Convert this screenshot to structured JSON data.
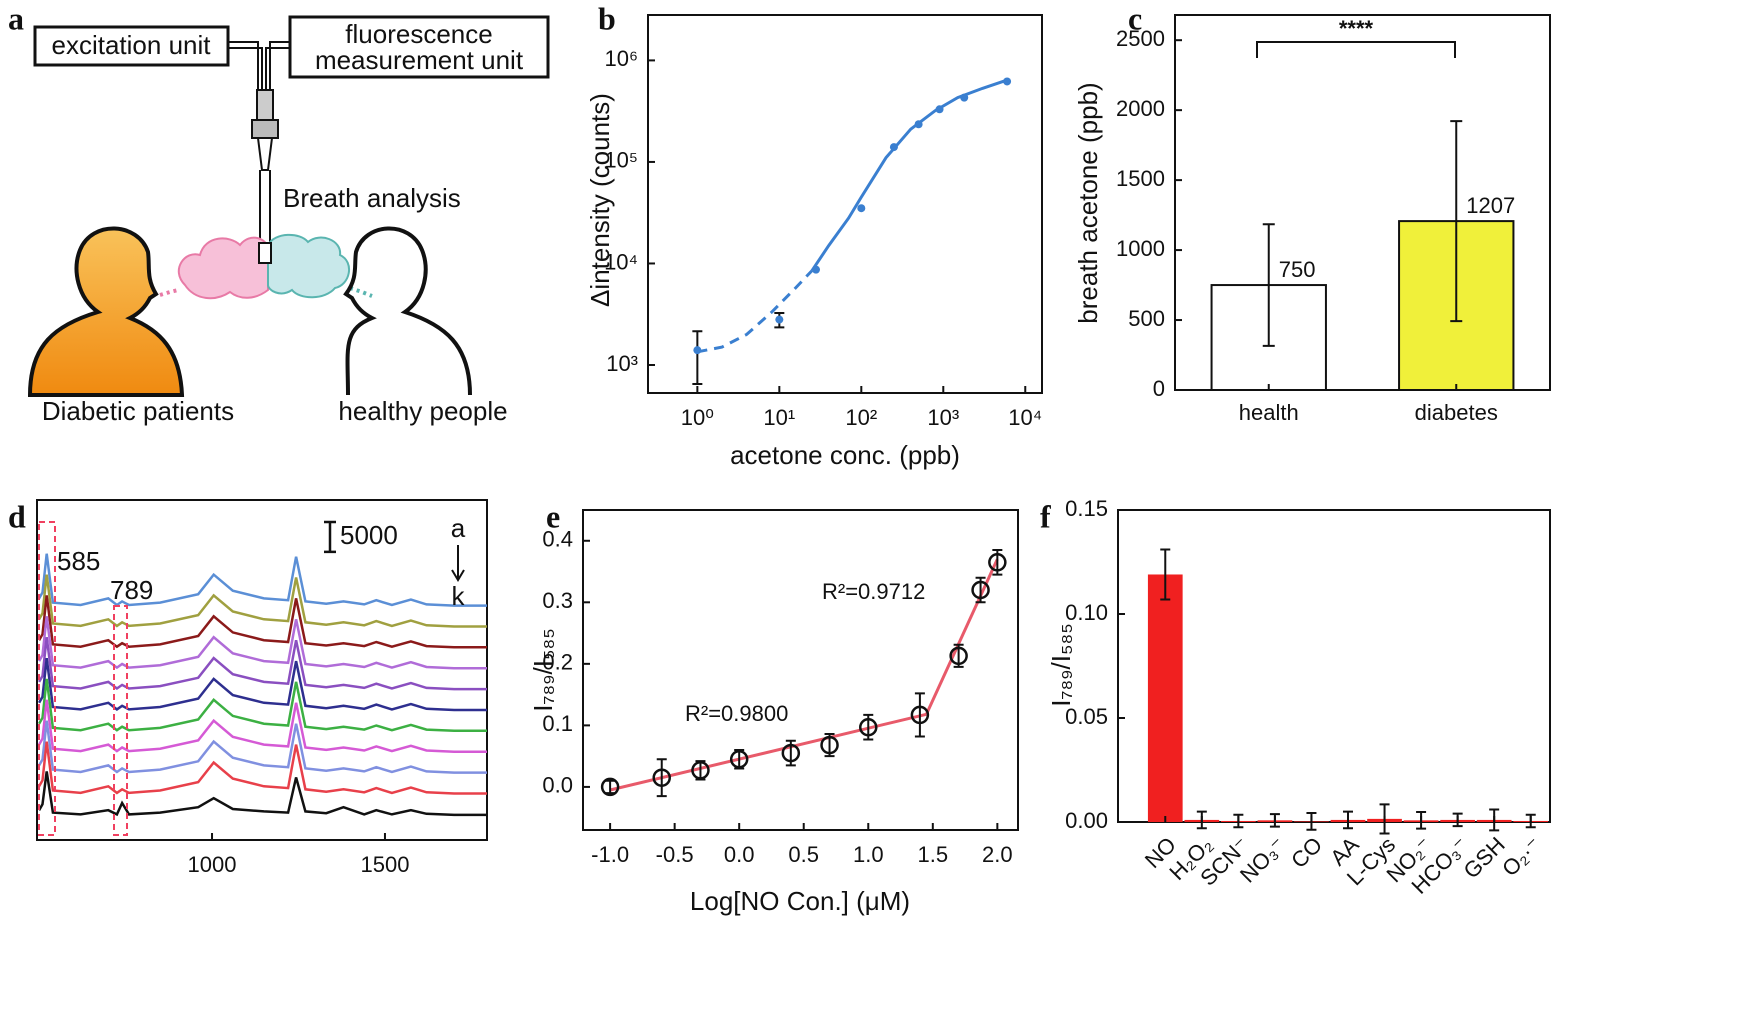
{
  "diagram": {
    "panel": "a",
    "excitation_unit": "excitation unit",
    "measurement_unit": [
      "fluorescence",
      "measurement unit"
    ],
    "breath_analysis": "Breath analysis",
    "diabetic": "Diabetic patients",
    "healthy": "healthy people"
  },
  "chart_data": [
    {
      "type": "scatter",
      "panel": "b",
      "x_label": "acetone conc. (ppb)",
      "y_label": "Δintensity (counts)",
      "x": [
        1,
        10,
        28,
        100,
        250,
        500,
        900,
        1800,
        6000
      ],
      "values": [
        1400,
        2800,
        8700,
        35000,
        140000,
        235000,
        330000,
        430000,
        620000
      ],
      "errors": [
        750,
        450,
        null,
        null,
        null,
        null,
        null,
        null,
        null
      ],
      "color": "#3a7fd0",
      "marker": "filled",
      "xlog": true,
      "ylog": true,
      "fit_lines": [
        {
          "x": [
            1,
            2,
            4,
            8,
            15,
            25
          ],
          "values": [
            1350,
            1500,
            2000,
            3300,
            5500,
            8500
          ],
          "dash": true
        },
        {
          "x": [
            25,
            40,
            70,
            100,
            200,
            400,
            800,
            1500,
            3000,
            6000
          ],
          "values": [
            8500,
            15000,
            28000,
            45000,
            110000,
            210000,
            320000,
            430000,
            530000,
            640000
          ],
          "dash": false
        }
      ],
      "fit_color": "#3a7fd0",
      "xlim": [
        0.25,
        16000
      ],
      "ylim": [
        530,
        2800000
      ],
      "xticks": [
        {
          "value": 1,
          "label": "10⁰"
        },
        {
          "value": 10,
          "label": "10¹"
        },
        {
          "value": 100,
          "label": "10²"
        },
        {
          "value": 1000,
          "label": "10³"
        },
        {
          "value": 10000,
          "label": "10⁴"
        }
      ],
      "yticks": [
        {
          "value": 1000,
          "label": "10³"
        },
        {
          "value": 10000,
          "label": "10⁴"
        },
        {
          "value": 100000,
          "label": "10⁵"
        },
        {
          "value": 1000000,
          "label": "10⁶"
        }
      ]
    },
    {
      "type": "bar",
      "panel": "c",
      "y_label": "breath acetone (ppb)",
      "categories": [
        "health",
        "diabetes"
      ],
      "values": [
        750,
        1207
      ],
      "errors": [
        435,
        715
      ],
      "colors": [
        "#ffffff",
        "#f0f03a"
      ],
      "show_values": true,
      "annotations": [
        "****"
      ],
      "ylim": [
        0,
        2680
      ],
      "yticks": [
        0,
        500,
        1000,
        1500,
        2000,
        2500
      ]
    },
    {
      "type": "line",
      "panel": "d",
      "x": [
        500,
        510,
        522,
        540,
        620,
        700,
        725,
        740,
        760,
        850,
        960,
        1005,
        1060,
        1150,
        1220,
        1243,
        1270,
        1330,
        1380,
        1440,
        1475,
        1520,
        1575,
        1620,
        1700,
        1795
      ],
      "series": [
        {
          "color": "#5b8fd6",
          "values": [
            40500,
            41500,
            48000,
            39800,
            39400,
            40500,
            39400,
            40000,
            39400,
            39800,
            41200,
            44500,
            41800,
            40500,
            40200,
            47500,
            40000,
            39600,
            40000,
            39500,
            40200,
            39400,
            40300,
            39500,
            39300,
            39300
          ]
        },
        {
          "color": "#a0a040",
          "values": [
            37000,
            38000,
            44500,
            36300,
            35900,
            37000,
            35900,
            36500,
            35900,
            36300,
            37700,
            41000,
            38300,
            37000,
            36700,
            44000,
            36500,
            36100,
            36500,
            36000,
            36700,
            35900,
            36800,
            36000,
            35800,
            35800
          ]
        },
        {
          "color": "#8b1a1a",
          "values": [
            33500,
            34500,
            41000,
            32800,
            32400,
            33500,
            32400,
            33000,
            32400,
            32800,
            34200,
            37500,
            34800,
            33500,
            33200,
            40500,
            33000,
            32600,
            33000,
            32500,
            33200,
            32400,
            33300,
            32500,
            32300,
            32300
          ]
        },
        {
          "color": "#b06cd8",
          "values": [
            30000,
            31000,
            37500,
            29300,
            28900,
            30000,
            28900,
            29500,
            28900,
            29300,
            30700,
            34000,
            31300,
            30000,
            29700,
            37000,
            29500,
            29100,
            29500,
            29000,
            29700,
            28900,
            29800,
            29000,
            28800,
            28800
          ]
        },
        {
          "color": "#8a4fc0",
          "values": [
            26500,
            27500,
            34000,
            25800,
            25400,
            26500,
            25400,
            26000,
            25400,
            25800,
            27200,
            30500,
            27800,
            26500,
            26200,
            33500,
            26000,
            25600,
            26000,
            25500,
            26200,
            25400,
            26300,
            25500,
            25300,
            25300
          ]
        },
        {
          "color": "#2e2f8f",
          "values": [
            23000,
            24000,
            30500,
            22300,
            21900,
            23000,
            21900,
            22500,
            21900,
            22300,
            23700,
            27000,
            24300,
            23000,
            22700,
            30000,
            22500,
            22100,
            22500,
            22000,
            22700,
            21900,
            22800,
            22000,
            21800,
            21800
          ]
        },
        {
          "color": "#3cb043",
          "values": [
            19500,
            20500,
            27000,
            18800,
            18400,
            19500,
            18400,
            19000,
            18400,
            18800,
            20200,
            23500,
            20800,
            19500,
            19200,
            26500,
            19000,
            18600,
            19000,
            18500,
            19200,
            18400,
            19300,
            18500,
            18300,
            18300
          ]
        },
        {
          "color": "#d55ad5",
          "values": [
            16000,
            17000,
            23500,
            15300,
            14900,
            16000,
            14900,
            15500,
            14900,
            15300,
            16700,
            20000,
            17300,
            16000,
            15700,
            23000,
            15500,
            15100,
            15500,
            15000,
            15700,
            14900,
            15800,
            15000,
            14800,
            14800
          ]
        },
        {
          "color": "#8090e0",
          "values": [
            12500,
            13500,
            20000,
            11800,
            11400,
            12500,
            11400,
            12000,
            11400,
            11800,
            13200,
            16500,
            13800,
            12500,
            12200,
            19500,
            12000,
            11600,
            12000,
            11500,
            12200,
            11400,
            12300,
            11500,
            11300,
            11300
          ]
        },
        {
          "color": "#e8404a",
          "values": [
            9000,
            10000,
            16500,
            8300,
            7900,
            9000,
            7900,
            8500,
            7900,
            8300,
            9700,
            13000,
            10300,
            9000,
            8700,
            16000,
            8500,
            8100,
            8500,
            8000,
            8700,
            7900,
            8800,
            8000,
            7800,
            7800
          ]
        },
        {
          "color": "#111111",
          "values": [
            5000,
            6000,
            11500,
            4600,
            4300,
            5000,
            4300,
            6200,
            4300,
            4600,
            5500,
            7000,
            5200,
            4800,
            4600,
            10500,
            4800,
            4500,
            5500,
            4300,
            5000,
            4300,
            5000,
            4400,
            4200,
            4200
          ]
        }
      ],
      "annotations": [
        "585",
        "789",
        "a",
        "k"
      ],
      "scale_bar": 5000,
      "xlim": [
        494,
        1795
      ],
      "ylim": [
        0,
        57000
      ],
      "xticks": [
        1000,
        1500
      ]
    },
    {
      "type": "scatter",
      "panel": "e",
      "x_label": "Log[NO Con.] (μM)",
      "y_label": "I₇₈₉/I₅₈₅",
      "x": [
        -1,
        -0.6,
        -0.3,
        0,
        0.4,
        0.7,
        1.0,
        1.4,
        1.7,
        1.87,
        2.0
      ],
      "values": [
        0.0,
        0.015,
        0.027,
        0.045,
        0.055,
        0.068,
        0.097,
        0.117,
        0.213,
        0.32,
        0.365
      ],
      "errors": [
        0.01,
        0.03,
        0.015,
        0.015,
        0.02,
        0.018,
        0.02,
        0.035,
        0.018,
        0.02,
        0.02
      ],
      "color": "#111111",
      "marker": "open",
      "fit_lines": [
        {
          "x": [
            -1,
            1.45
          ],
          "values": [
            -0.005,
            0.118
          ],
          "dash": false
        },
        {
          "x": [
            1.45,
            2.0
          ],
          "values": [
            0.118,
            0.37
          ],
          "dash": false
        }
      ],
      "fit_color": "#e85a6a",
      "annotations": [
        "R²=0.9800",
        "R²=0.9712"
      ],
      "xlim": [
        -1.21,
        2.16
      ],
      "ylim": [
        -0.07,
        0.45
      ],
      "xticks": [
        {
          "value": -1,
          "label": "-1.0"
        },
        -0.5,
        {
          "value": 0,
          "label": "0.0"
        },
        0.5,
        {
          "value": 1,
          "label": "1.0"
        },
        1.5,
        {
          "value": 2,
          "label": "2.0"
        }
      ],
      "yticks": [
        {
          "value": 0,
          "label": "0.0"
        },
        0.1,
        0.2,
        0.3,
        0.4
      ]
    },
    {
      "type": "bar",
      "panel": "f",
      "y_label": "I₇₈₉/I₅₈₅",
      "categories": [
        "NO",
        "H₂O₂",
        "SCN⁻",
        "NO₃⁻",
        "CO",
        "AA",
        "L-Cys",
        "NO₂⁻",
        "HCO₃⁻",
        "GSH",
        "O₂·⁻"
      ],
      "values": [
        0.119,
        0.001,
        0.0005,
        0.0008,
        0.0003,
        0.001,
        0.0015,
        0.0008,
        0.001,
        0.001,
        0.0005
      ],
      "errors": [
        0.012,
        0.004,
        0.003,
        0.003,
        0.004,
        0.004,
        0.007,
        0.004,
        0.003,
        0.005,
        0.003
      ],
      "color": "#f02020",
      "ylim": [
        0,
        0.15
      ],
      "yticks": [
        {
          "value": 0,
          "label": "0.00"
        },
        {
          "value": 0.05,
          "label": "0.05"
        },
        {
          "value": 0.1,
          "label": "0.10"
        },
        {
          "value": 0.15,
          "label": "0.15"
        }
      ]
    }
  ]
}
